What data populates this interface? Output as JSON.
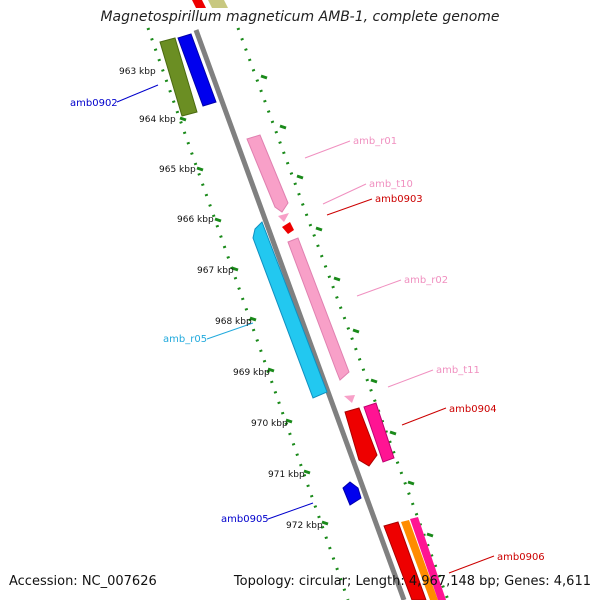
{
  "title": "Magnetospirillum magneticum AMB-1, complete genome",
  "footer": {
    "accession": "Accession: NC_007626",
    "topology": "Topology: circular; Length: 4,967,148 bp; Genes: 4,611"
  },
  "ticks": [
    {
      "label": "963 kbp",
      "kbp": 963
    },
    {
      "label": "964 kbp",
      "kbp": 964
    },
    {
      "label": "965 kbp",
      "kbp": 965
    },
    {
      "label": "966 kbp",
      "kbp": 966
    },
    {
      "label": "967 kbp",
      "kbp": 967
    },
    {
      "label": "968 kbp",
      "kbp": 968
    },
    {
      "label": "969 kbp",
      "kbp": 969
    },
    {
      "label": "970 kbp",
      "kbp": 970
    },
    {
      "label": "971 kbp",
      "kbp": 971
    },
    {
      "label": "972 kbp",
      "kbp": 972
    }
  ],
  "features": [
    {
      "label": "amb0902",
      "color": "#0000cc",
      "side": "left"
    },
    {
      "label": "amb_r01",
      "color": "#f090c0",
      "side": "right"
    },
    {
      "label": "amb_t10",
      "color": "#f090c0",
      "side": "right"
    },
    {
      "label": "amb0903",
      "color": "#cc0000",
      "side": "right"
    },
    {
      "label": "amb_r02",
      "color": "#f090c0",
      "side": "right"
    },
    {
      "label": "amb_r05",
      "color": "#22aadd",
      "side": "left"
    },
    {
      "label": "amb_t11",
      "color": "#f090c0",
      "side": "right"
    },
    {
      "label": "amb0904",
      "color": "#cc0000",
      "side": "right"
    },
    {
      "label": "amb0905",
      "color": "#0000cc",
      "side": "left"
    },
    {
      "label": "amb0906",
      "color": "#cc0000",
      "side": "right"
    }
  ]
}
